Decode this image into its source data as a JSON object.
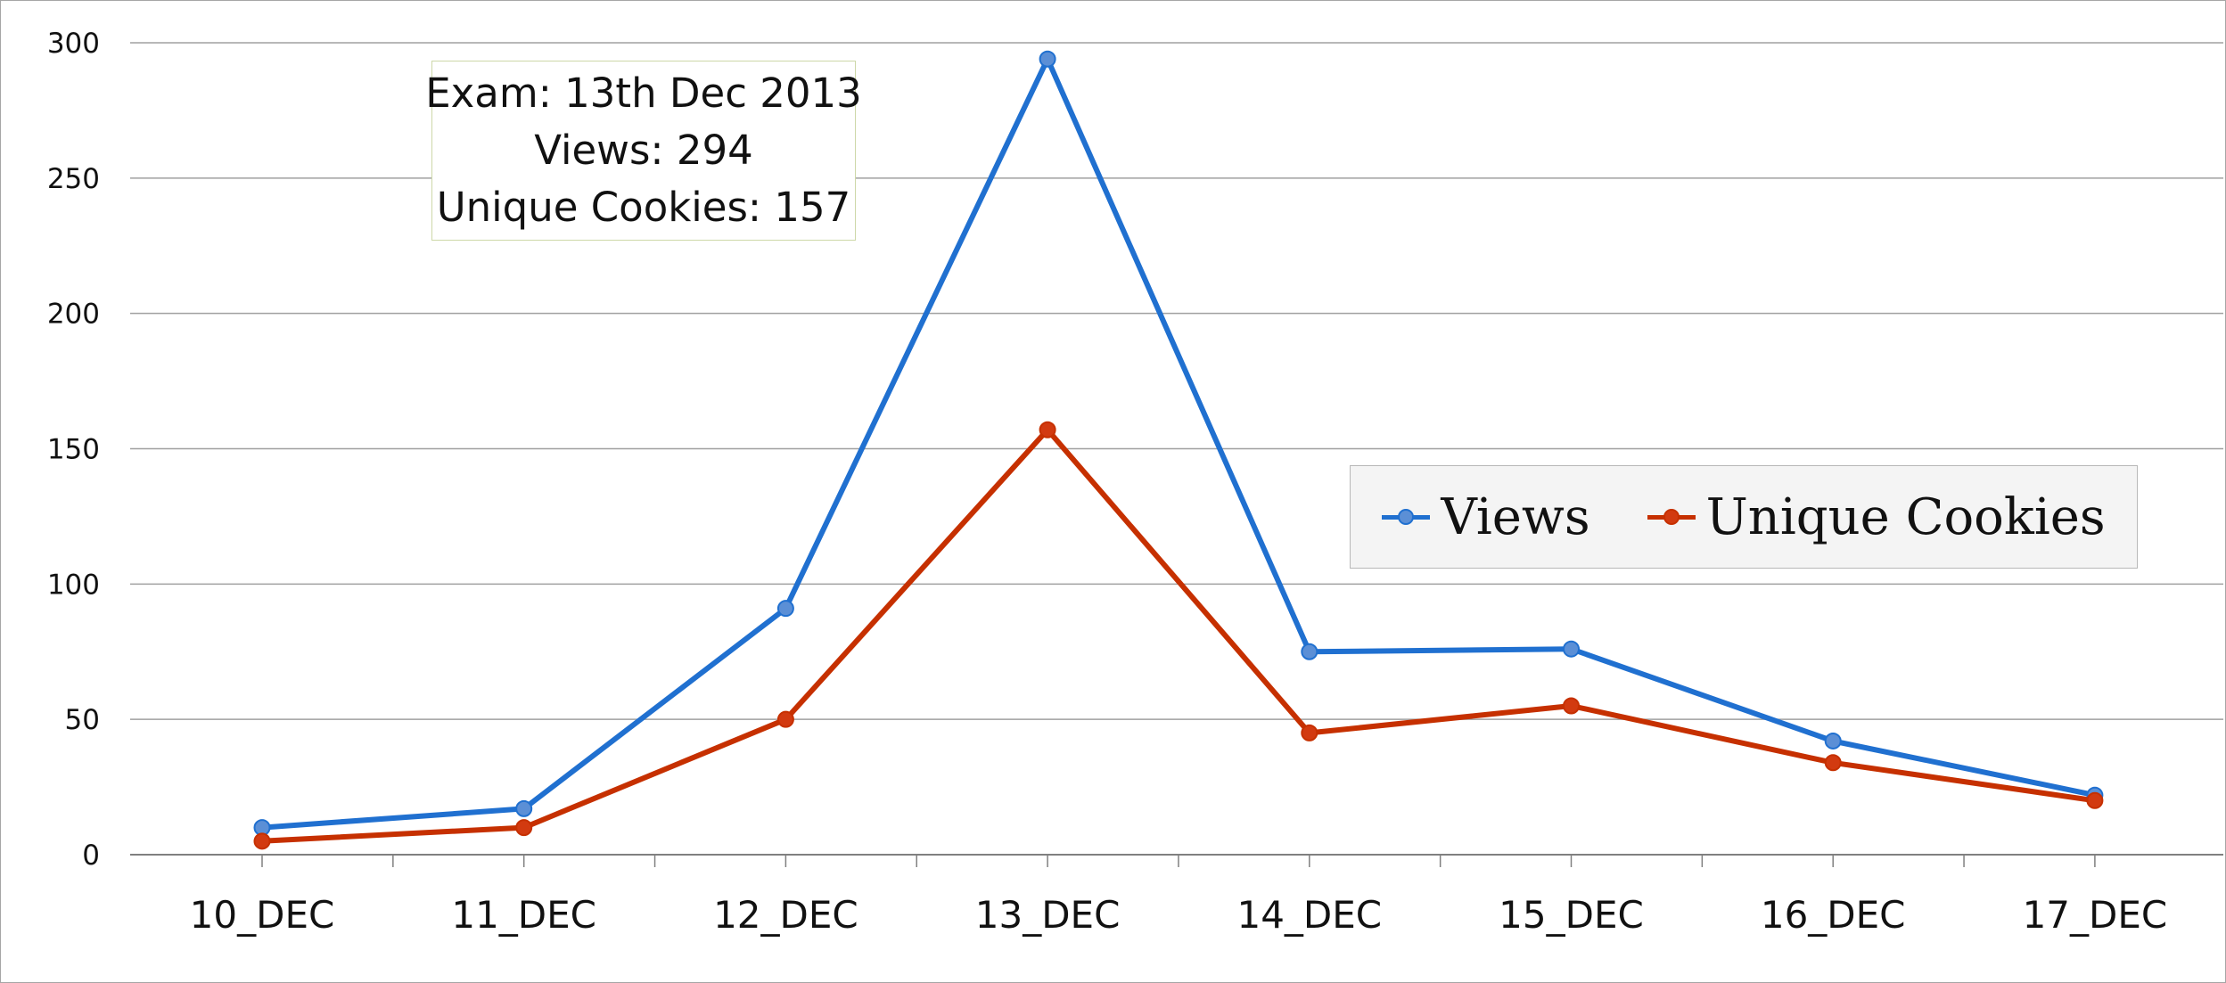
{
  "chart_data": {
    "type": "line",
    "categories": [
      "10_DEC",
      "11_DEC",
      "12_DEC",
      "13_DEC",
      "14_DEC",
      "15_DEC",
      "16_DEC",
      "17_DEC"
    ],
    "series": [
      {
        "name": "Views",
        "values": [
          10,
          17,
          91,
          294,
          75,
          76,
          42,
          22
        ],
        "color": "#2070d0",
        "marker_fill": "#5b8fd6"
      },
      {
        "name": "Unique Cookies",
        "values": [
          5,
          10,
          50,
          157,
          45,
          55,
          34,
          20
        ],
        "color": "#c63000",
        "marker_fill": "#d23a10"
      }
    ],
    "ylim": [
      0,
      300
    ],
    "yticks": [
      0,
      50,
      100,
      150,
      200,
      250,
      300
    ],
    "grid": true,
    "legend": "right",
    "annotation": {
      "lines": [
        "Exam: 13th Dec 2013",
        "Views: 294",
        "Unique Cookies: 157"
      ],
      "position": "top-left"
    },
    "xlabel": "",
    "ylabel": "",
    "title": ""
  },
  "colors": {
    "grid": "#a0a0a0",
    "axis": "#808080",
    "annotation_border": "#cdd8a8",
    "legend_background": "#f4f4f4"
  }
}
